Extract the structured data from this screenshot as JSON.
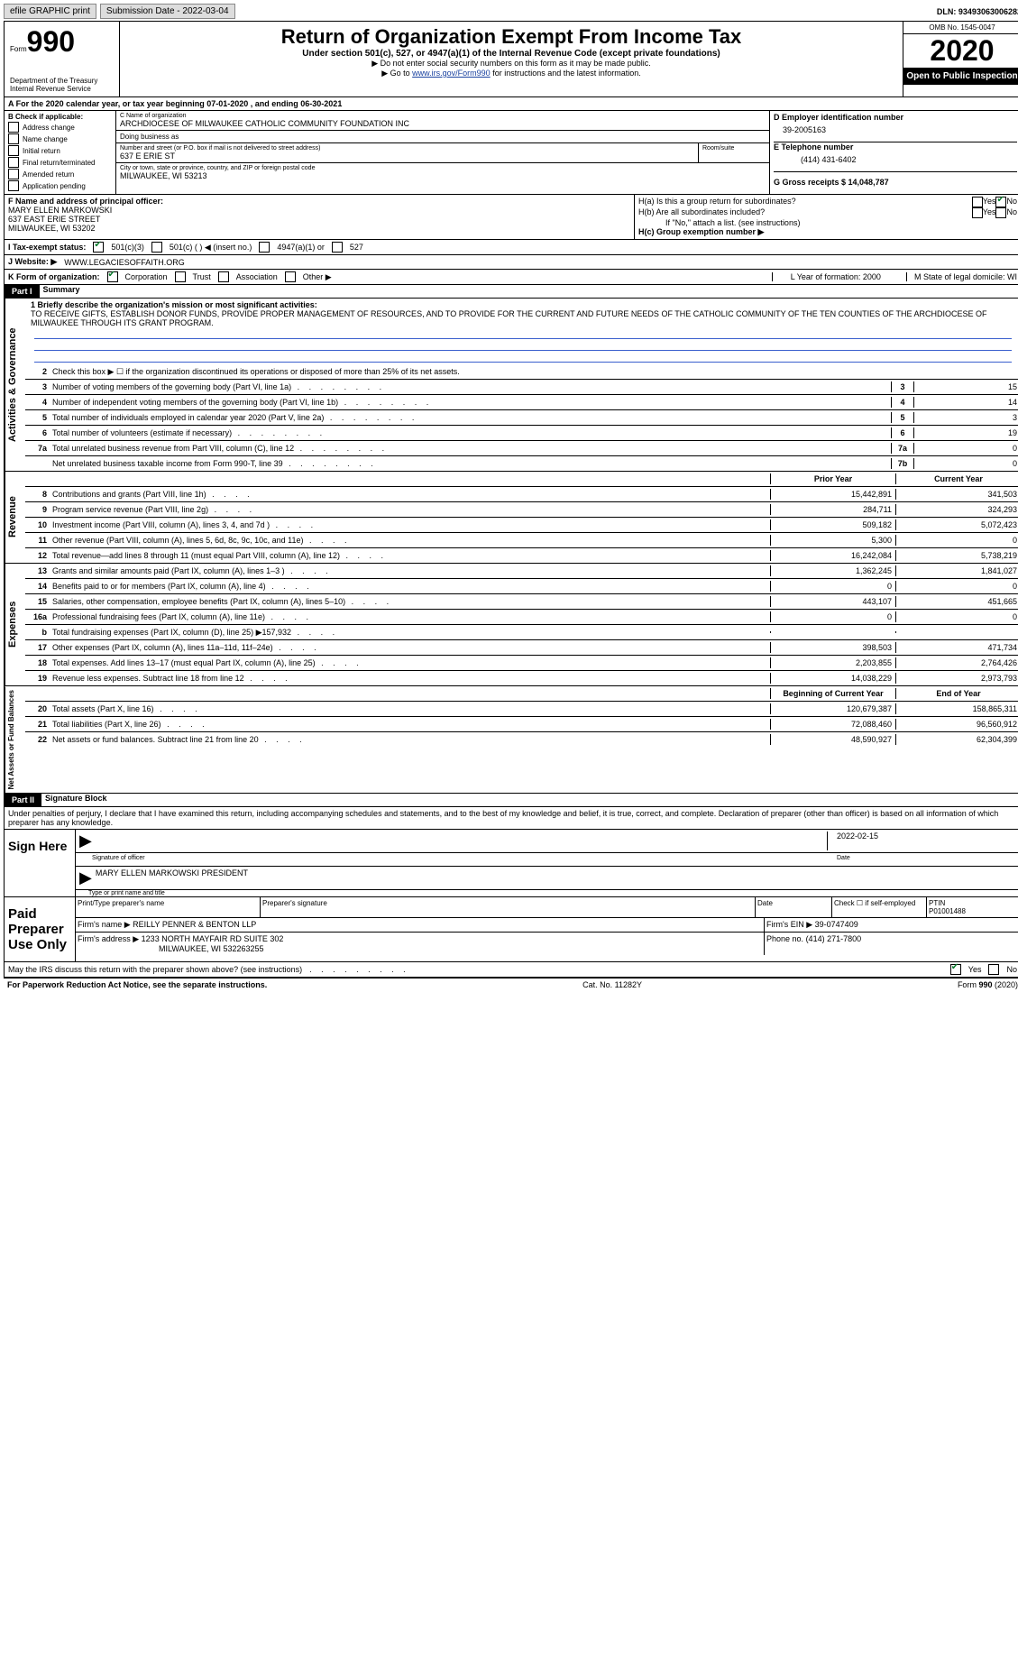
{
  "topbar": {
    "efile": "efile GRAPHIC print",
    "subdate_label": "Submission Date - 2022-03-04",
    "dln_label": "DLN: 93493063006282"
  },
  "header": {
    "form_word": "Form",
    "form_no": "990",
    "dept": "Department of the Treasury",
    "irs": "Internal Revenue Service",
    "title": "Return of Organization Exempt From Income Tax",
    "subtitle": "Under section 501(c), 527, or 4947(a)(1) of the Internal Revenue Code (except private foundations)",
    "note1": "Do not enter social security numbers on this form as it may be made public.",
    "note2_pre": "Go to ",
    "note2_link": "www.irs.gov/Form990",
    "note2_post": " for instructions and the latest information.",
    "omb": "OMB No. 1545-0047",
    "year": "2020",
    "inspect": "Open to Public Inspection"
  },
  "rowA": "A  For the 2020 calendar year, or tax year beginning 07-01-2020    , and ending 06-30-2021",
  "sectionB": {
    "label": "B Check if applicable:",
    "items": [
      "Address change",
      "Name change",
      "Initial return",
      "Final return/terminated",
      "Amended return",
      "Application pending"
    ],
    "C_label": "C Name of organization",
    "org_name": "ARCHDIOCESE OF MILWAUKEE CATHOLIC COMMUNITY FOUNDATION INC",
    "dba": "Doing business as",
    "addr_label": "Number and street (or P.O. box if mail is not delivered to street address)",
    "room": "Room/suite",
    "addr": "637 E ERIE ST",
    "city_label": "City or town, state or province, country, and ZIP or foreign postal code",
    "city": "MILWAUKEE, WI  53213",
    "D_label": "D Employer identification number",
    "ein": "39-2005163",
    "E_label": "E Telephone number",
    "phone": "(414) 431-6402",
    "G_label": "G Gross receipts $ 14,048,787"
  },
  "sectionF": {
    "F_label": "F  Name and address of principal officer:",
    "name": "MARY ELLEN MARKOWSKI",
    "addr1": "637 EAST ERIE STREET",
    "addr2": "MILWAUKEE, WI  53202",
    "Ha": "H(a)  Is this a group return for subordinates?",
    "Hb": "H(b)  Are all subordinates included?",
    "Hb_note": "If \"No,\" attach a list. (see instructions)",
    "Hc": "H(c)  Group exemption number ▶",
    "yes": "Yes",
    "no": "No"
  },
  "rowI": {
    "label": "I    Tax-exempt status:",
    "opts": [
      "501(c)(3)",
      "501(c) (   ) ◀ (insert no.)",
      "4947(a)(1) or",
      "527"
    ]
  },
  "rowJ": {
    "label": "J    Website: ▶",
    "val": "WWW.LEGACIESOFFAITH.ORG"
  },
  "rowK": {
    "label": "K Form of organization:",
    "opts": [
      "Corporation",
      "Trust",
      "Association",
      "Other ▶"
    ],
    "L": "L Year of formation: 2000",
    "M": "M State of legal domicile: WI"
  },
  "part1": {
    "tag": "Part I",
    "title": "Summary",
    "q1_label": "1  Briefly describe the organization's mission or most significant activities:",
    "q1": "TO RECEIVE GIFTS, ESTABLISH DONOR FUNDS, PROVIDE PROPER MANAGEMENT OF RESOURCES, AND TO PROVIDE FOR THE CURRENT AND FUTURE NEEDS OF THE CATHOLIC COMMUNITY OF THE TEN COUNTIES OF THE ARCHDIOCESE OF MILWAUKEE THROUGH ITS GRANT PROGRAM.",
    "q2": "Check this box ▶ ☐ if the organization discontinued its operations or disposed of more than 25% of its net assets.",
    "gov_lines": [
      {
        "n": "3",
        "d": "Number of voting members of the governing body (Part VI, line 1a)",
        "b": "3",
        "v": "15"
      },
      {
        "n": "4",
        "d": "Number of independent voting members of the governing body (Part VI, line 1b)",
        "b": "4",
        "v": "14"
      },
      {
        "n": "5",
        "d": "Total number of individuals employed in calendar year 2020 (Part V, line 2a)",
        "b": "5",
        "v": "3"
      },
      {
        "n": "6",
        "d": "Total number of volunteers (estimate if necessary)",
        "b": "6",
        "v": "19"
      },
      {
        "n": "7a",
        "d": "Total unrelated business revenue from Part VIII, column (C), line 12",
        "b": "7a",
        "v": "0"
      },
      {
        "n": "",
        "d": "Net unrelated business taxable income from Form 990-T, line 39",
        "b": "7b",
        "v": "0"
      }
    ],
    "prior": "Prior Year",
    "current": "Current Year",
    "rev_lines": [
      {
        "n": "8",
        "d": "Contributions and grants (Part VIII, line 1h)",
        "p": "15,442,891",
        "c": "341,503"
      },
      {
        "n": "9",
        "d": "Program service revenue (Part VIII, line 2g)",
        "p": "284,711",
        "c": "324,293"
      },
      {
        "n": "10",
        "d": "Investment income (Part VIII, column (A), lines 3, 4, and 7d )",
        "p": "509,182",
        "c": "5,072,423"
      },
      {
        "n": "11",
        "d": "Other revenue (Part VIII, column (A), lines 5, 6d, 8c, 9c, 10c, and 11e)",
        "p": "5,300",
        "c": "0"
      },
      {
        "n": "12",
        "d": "Total revenue—add lines 8 through 11 (must equal Part VIII, column (A), line 12)",
        "p": "16,242,084",
        "c": "5,738,219"
      }
    ],
    "exp_lines": [
      {
        "n": "13",
        "d": "Grants and similar amounts paid (Part IX, column (A), lines 1–3 )",
        "p": "1,362,245",
        "c": "1,841,027"
      },
      {
        "n": "14",
        "d": "Benefits paid to or for members (Part IX, column (A), line 4)",
        "p": "0",
        "c": "0"
      },
      {
        "n": "15",
        "d": "Salaries, other compensation, employee benefits (Part IX, column (A), lines 5–10)",
        "p": "443,107",
        "c": "451,665"
      },
      {
        "n": "16a",
        "d": "Professional fundraising fees (Part IX, column (A), line 11e)",
        "p": "0",
        "c": "0"
      },
      {
        "n": "b",
        "d": "Total fundraising expenses (Part IX, column (D), line 25) ▶157,932",
        "p": "",
        "c": ""
      },
      {
        "n": "17",
        "d": "Other expenses (Part IX, column (A), lines 11a–11d, 11f–24e)",
        "p": "398,503",
        "c": "471,734"
      },
      {
        "n": "18",
        "d": "Total expenses. Add lines 13–17 (must equal Part IX, column (A), line 25)",
        "p": "2,203,855",
        "c": "2,764,426"
      },
      {
        "n": "19",
        "d": "Revenue less expenses. Subtract line 18 from line 12",
        "p": "14,038,229",
        "c": "2,973,793"
      }
    ],
    "boy": "Beginning of Current Year",
    "eoy": "End of Year",
    "net_lines": [
      {
        "n": "20",
        "d": "Total assets (Part X, line 16)",
        "p": "120,679,387",
        "c": "158,865,311"
      },
      {
        "n": "21",
        "d": "Total liabilities (Part X, line 26)",
        "p": "72,088,460",
        "c": "96,560,912"
      },
      {
        "n": "22",
        "d": "Net assets or fund balances. Subtract line 21 from line 20",
        "p": "48,590,927",
        "c": "62,304,399"
      }
    ]
  },
  "part2": {
    "tag": "Part II",
    "title": "Signature Block",
    "perjury": "Under penalties of perjury, I declare that I have examined this return, including accompanying schedules and statements, and to the best of my knowledge and belief, it is true, correct, and complete. Declaration of preparer (other than officer) is based on all information of which preparer has any knowledge.",
    "sign_here": "Sign Here",
    "sig_officer": "Signature of officer",
    "sig_date": "2022-02-15",
    "date_label": "Date",
    "officer_name": "MARY ELLEN MARKOWSKI  PRESIDENT",
    "type_label": "Type or print name and title",
    "paid": "Paid Preparer Use Only",
    "h_print": "Print/Type preparer's name",
    "h_sig": "Preparer's signature",
    "h_date": "Date",
    "h_check": "Check ☐ if self-employed",
    "h_ptin": "PTIN",
    "ptin": "P01001488",
    "firm_name_l": "Firm's name      ▶",
    "firm_name": "REILLY PENNER & BENTON LLP",
    "firm_ein_l": "Firm's EIN ▶",
    "firm_ein": "39-0747409",
    "firm_addr_l": "Firm's address ▶",
    "firm_addr": "1233 NORTH MAYFAIR RD SUITE 302",
    "firm_city": "MILWAUKEE, WI  532263255",
    "firm_phone_l": "Phone no.",
    "firm_phone": "(414) 271-7800",
    "discuss": "May the IRS discuss this return with the preparer shown above? (see instructions)"
  },
  "footer": {
    "left": "For Paperwork Reduction Act Notice, see the separate instructions.",
    "mid": "Cat. No. 11282Y",
    "right": "Form 990 (2020)"
  }
}
